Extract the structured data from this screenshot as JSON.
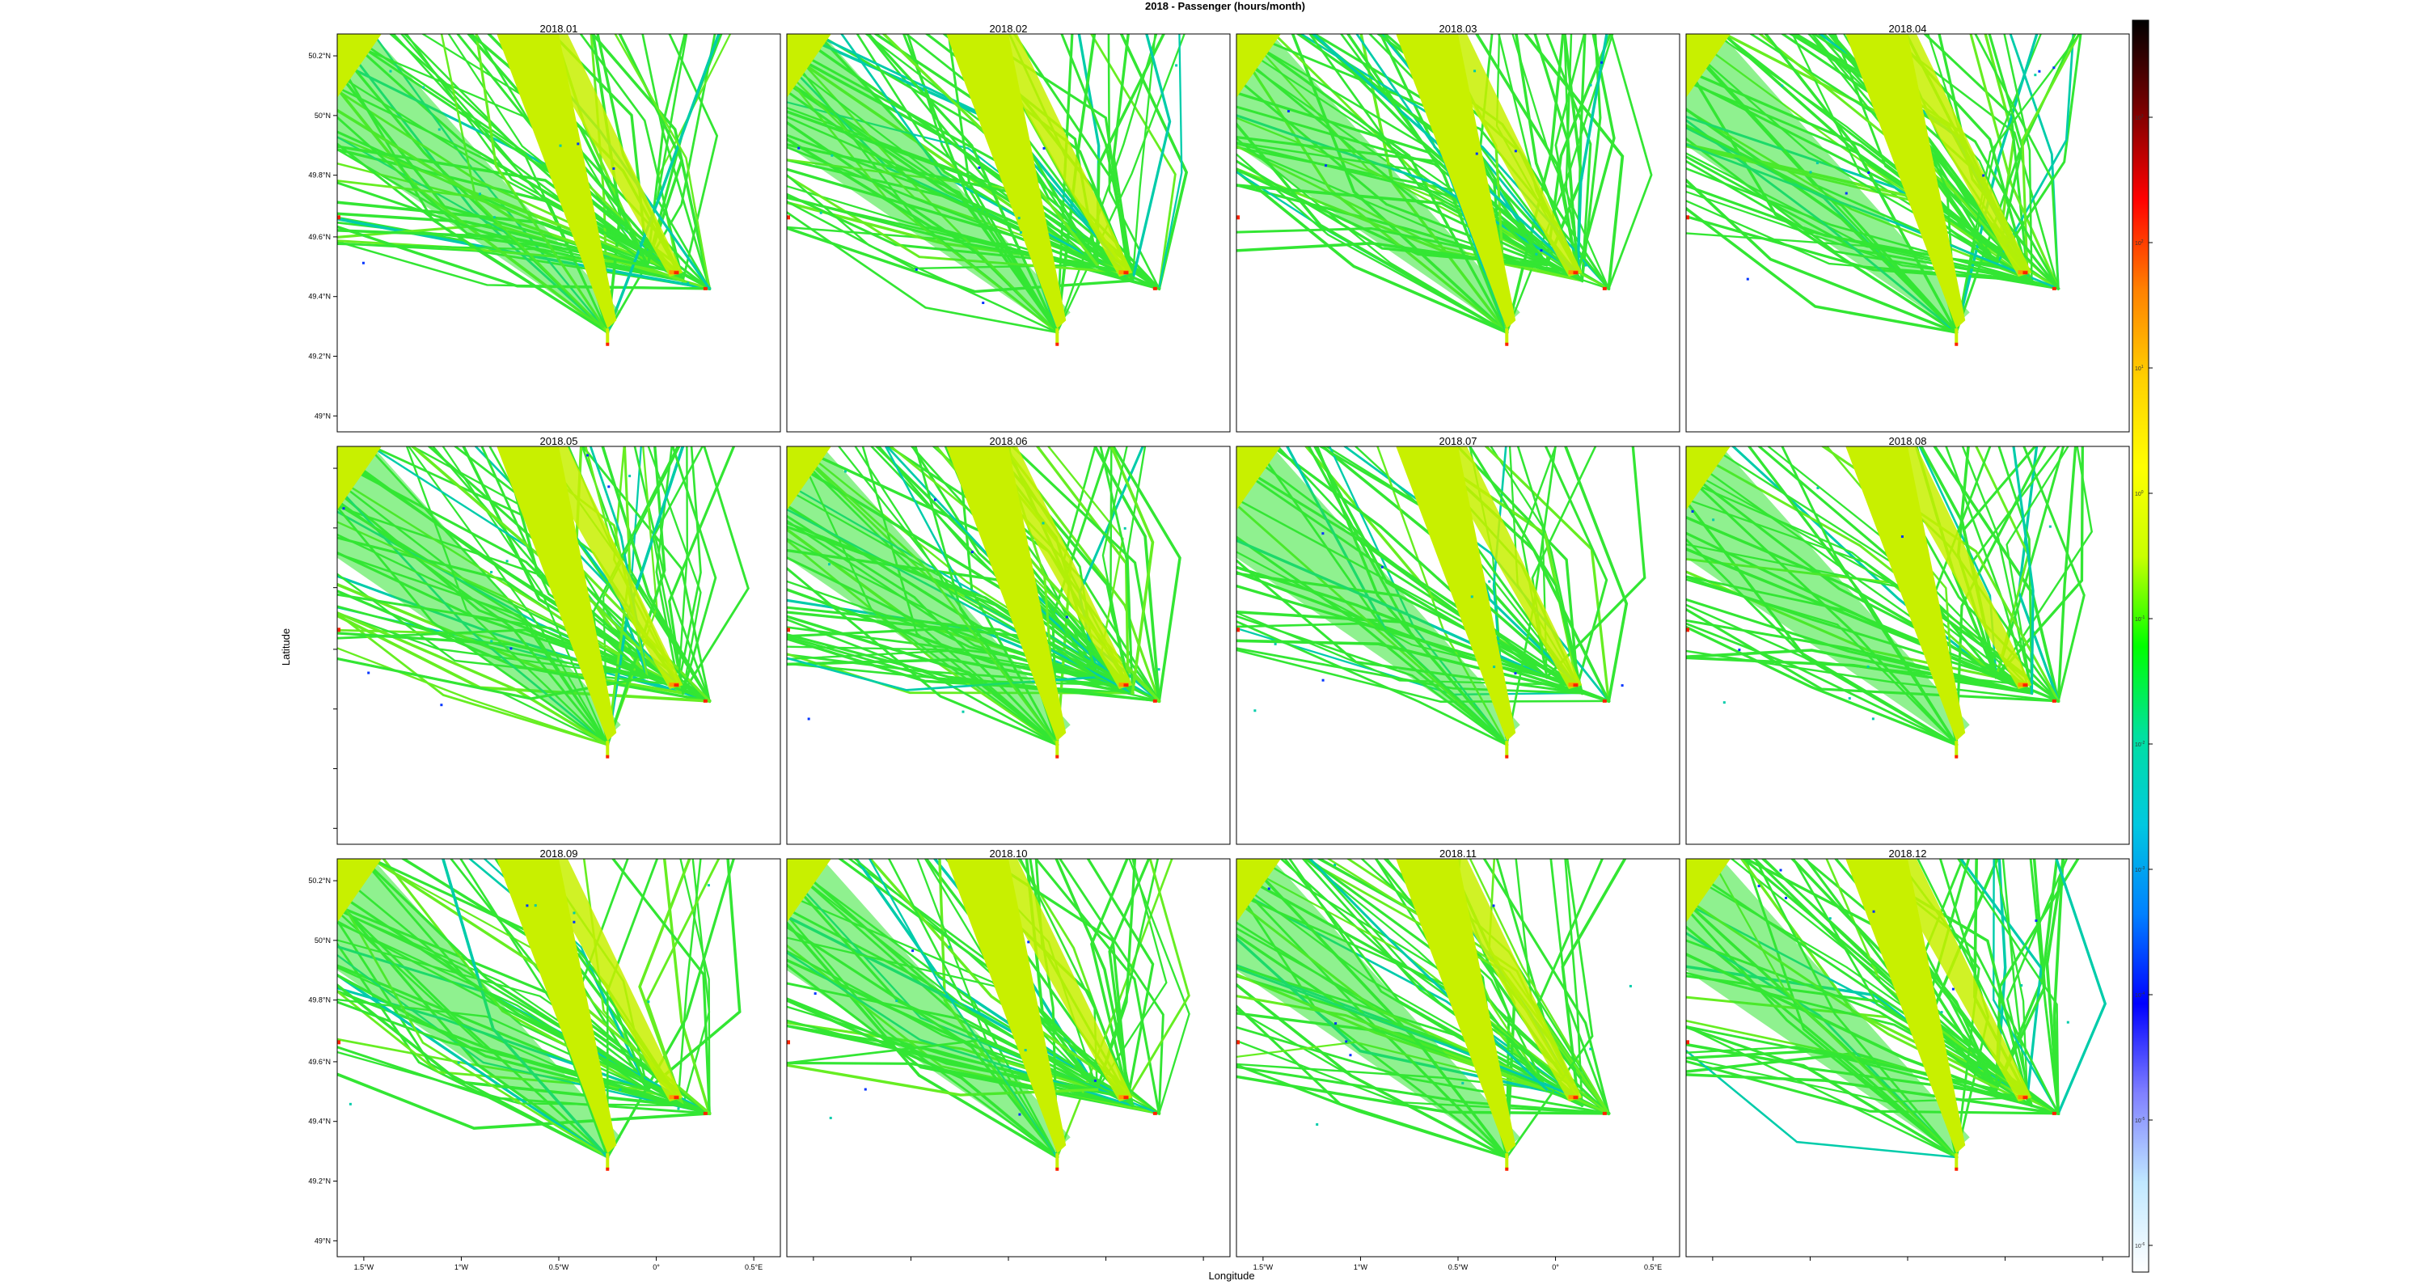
{
  "figure": {
    "title": "2018 - Passenger (hours/month)",
    "xlabel": "Longitude",
    "ylabel": "Latitude"
  },
  "panels": [
    "2018.01",
    "2018.02",
    "2018.03",
    "2018.04",
    "2018.05",
    "2018.06",
    "2018.07",
    "2018.08",
    "2018.09",
    "2018.10",
    "2018.11",
    "2018.12"
  ],
  "lat_ticks": [
    "50.2°N",
    "50°N",
    "49.8°N",
    "49.6°N",
    "49.4°N",
    "49.2°N",
    "49°N"
  ],
  "lon_ticks": [
    "1.5°W",
    "1°W",
    "0.5°W",
    "0°",
    "0.5°E"
  ],
  "colorbar": {
    "labels": [
      "10^3",
      "10^2",
      "10^1",
      "10^0",
      "10^-1",
      "10^-2",
      "10^-3",
      "10^-4",
      "10^-5",
      "10^-6"
    ],
    "stops": [
      "#000000",
      "#7a0000",
      "#ff0000",
      "#ff8000",
      "#ffd000",
      "#ffff00",
      "#c8ff00",
      "#00ff00",
      "#00e0a0",
      "#00c8e0",
      "#0080ff",
      "#0000ff",
      "#8080ff",
      "#c0e8ff",
      "#ffffff"
    ]
  },
  "colors": {
    "main_lane": "#c8f000",
    "track": "#33e633",
    "track_alt": "#66ee22",
    "hotspot": "#ff2200",
    "hot_orange": "#ff9900",
    "cyan": "#00ccaa",
    "blue": "#0033ff"
  }
}
